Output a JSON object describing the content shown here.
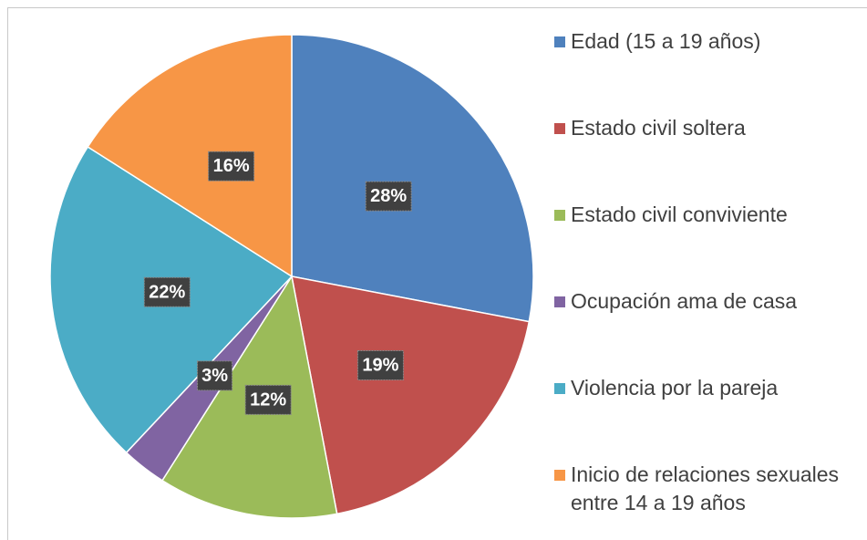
{
  "chart_data": {
    "type": "pie",
    "categories": [
      "Edad (15 a 19 años)",
      "Estado civil soltera",
      "Estado civil conviviente",
      "Ocupación ama de casa",
      "Violencia por la pareja",
      "Inicio de relaciones sexuales entre 14 a 19 años"
    ],
    "values": [
      28,
      19,
      12,
      3,
      22,
      16
    ],
    "value_labels": [
      "28%",
      "19%",
      "12%",
      "3%",
      "22%",
      "16%"
    ],
    "colors": [
      "#4f81bd",
      "#c0504d",
      "#9bbb59",
      "#8064a2",
      "#4bacc6",
      "#f79646"
    ],
    "legend": "right"
  }
}
